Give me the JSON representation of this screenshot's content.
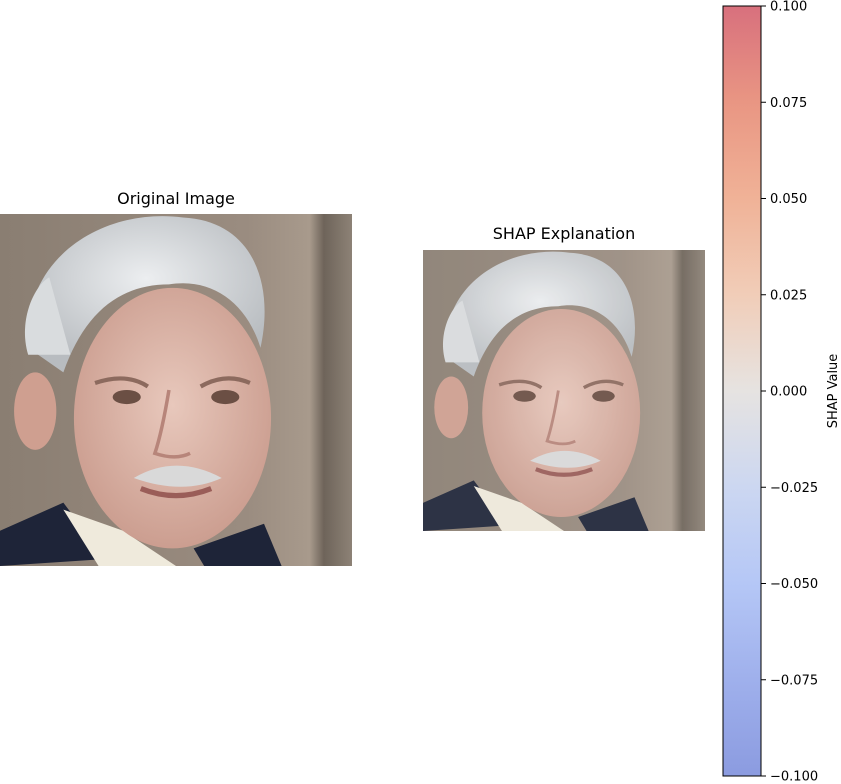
{
  "panels": {
    "original_title": "Original Image",
    "shap_title": "SHAP Explanation"
  },
  "chart_data": {
    "type": "heatmap",
    "colormap": "coolwarm",
    "colorbar": {
      "label": "SHAP Value",
      "vmin": -0.1,
      "vmax": 0.1,
      "ticks": [
        0.1,
        0.075,
        0.05,
        0.025,
        0.0,
        -0.025,
        -0.05,
        -0.075,
        -0.1
      ],
      "tick_labels": [
        "0.100",
        "0.075",
        "0.050",
        "0.025",
        "0.000",
        "−0.025",
        "−0.050",
        "−0.075",
        "−0.100"
      ],
      "alpha": 0.7
    },
    "colors": {
      "cmap_low": "#8b9be0",
      "cmap_mid": "#e6e3e1",
      "cmap_high": "#d8707d"
    }
  }
}
